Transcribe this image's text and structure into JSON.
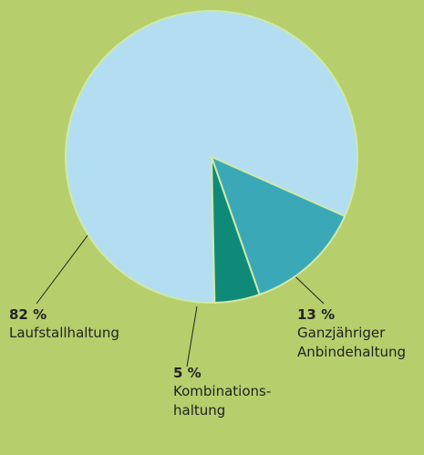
{
  "chart_data": {
    "type": "pie",
    "categories": [
      [
        "Laufstallhaltung"
      ],
      [
        "Ganzjähriger",
        "Anbindehaltung"
      ],
      [
        "Kombinations-",
        "haltung"
      ]
    ],
    "values": [
      82,
      13,
      5
    ],
    "value_labels": [
      "82 %",
      "13 %",
      "5 %"
    ],
    "colors": [
      "#b3def2",
      "#3ba8b8",
      "#0f8a78"
    ]
  }
}
